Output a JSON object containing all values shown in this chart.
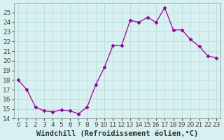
{
  "x": [
    0,
    1,
    2,
    3,
    4,
    5,
    6,
    7,
    8,
    9,
    10,
    11,
    12,
    13,
    14,
    15,
    16,
    17,
    18,
    19,
    20,
    21,
    22,
    23
  ],
  "y": [
    18,
    17,
    15.2,
    14.8,
    14.7,
    14.9,
    14.8,
    14.5,
    15.2,
    17.5,
    19.3,
    21.6,
    21.6,
    24.2,
    24.0,
    24.5,
    24.0,
    25.5,
    23.2,
    23.2,
    22.2,
    21.5,
    20.5,
    20.3
  ],
  "line_color": "#990099",
  "marker_color": "#990099",
  "bg_color": "#d8f0f0",
  "grid_color": "#b0d8d8",
  "xlabel": "Windchill (Refroidissement éolien,°C)",
  "ylim": [
    14,
    26
  ],
  "xlim": [
    -0.5,
    23.5
  ],
  "yticks": [
    14,
    15,
    16,
    17,
    18,
    19,
    20,
    21,
    22,
    23,
    24,
    25
  ],
  "xticks": [
    0,
    1,
    2,
    3,
    4,
    5,
    6,
    7,
    8,
    9,
    10,
    11,
    12,
    13,
    14,
    15,
    16,
    17,
    18,
    19,
    20,
    21,
    22,
    23
  ],
  "xlabel_fontsize": 7.5,
  "tick_fontsize": 6.5
}
